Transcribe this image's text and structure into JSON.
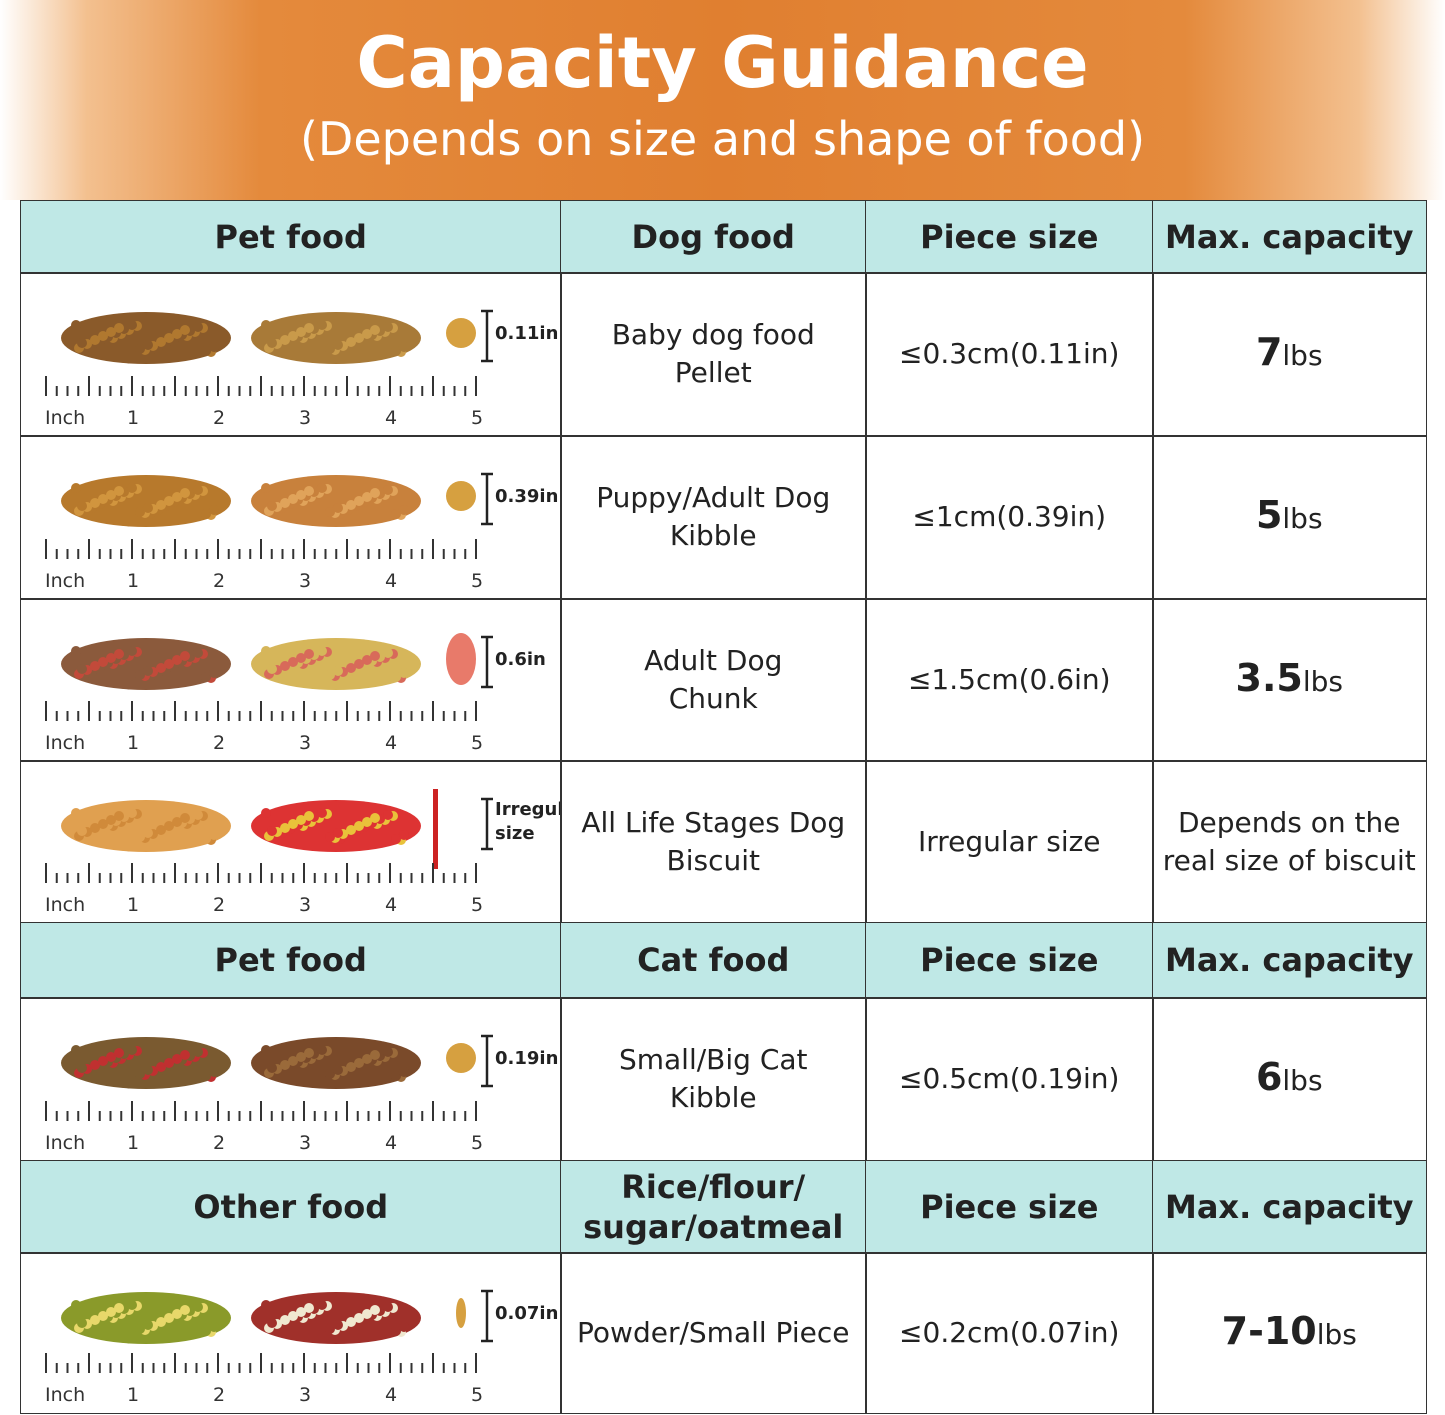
{
  "header": {
    "title": "Capacity Guidance",
    "subtitle": "(Depends on size and shape of food)"
  },
  "ruler": [
    "Inch",
    "1",
    "2",
    "3",
    "4",
    "5"
  ],
  "sections": [
    {
      "columns": [
        [
          "Pet food"
        ],
        [
          "Dog food"
        ],
        [
          "Piece size"
        ],
        [
          "Max. capacity"
        ]
      ],
      "rows": [
        {
          "size_mark": [
            "0.11in"
          ],
          "food": [
            "Baby dog food",
            "Pellet"
          ],
          "piece": "≤0.3cm(0.11in)",
          "capacity": [
            "7"
          ],
          "unit": "lbs"
        },
        {
          "size_mark": [
            "0.39in"
          ],
          "food": [
            "Puppy/Adult Dog",
            "Kibble"
          ],
          "piece": "≤1cm(0.39in)",
          "capacity": [
            "5"
          ],
          "unit": "lbs"
        },
        {
          "size_mark": [
            "0.6in"
          ],
          "food": [
            "Adult Dog",
            "Chunk"
          ],
          "piece": "≤1.5cm(0.6in)",
          "capacity": [
            "3.5"
          ],
          "unit": "lbs"
        },
        {
          "size_mark": [
            "Irregular",
            "size"
          ],
          "food": [
            "All Life Stages Dog",
            "Biscuit"
          ],
          "piece": "Irregular size",
          "capacity": [
            "Depends on the",
            "real size of biscuit"
          ]
        }
      ]
    },
    {
      "columns": [
        [
          "Pet food"
        ],
        [
          "Cat food"
        ],
        [
          "Piece size"
        ],
        [
          "Max. capacity"
        ]
      ],
      "rows": [
        {
          "size_mark": [
            "0.19in"
          ],
          "food": [
            "Small/Big Cat",
            "Kibble"
          ],
          "piece": "≤0.5cm(0.19in)",
          "capacity": [
            "6"
          ],
          "unit": "lbs"
        }
      ]
    },
    {
      "columns": [
        [
          "Other food"
        ],
        [
          "Rice/flour/",
          "sugar/oatmeal"
        ],
        [
          "Piece size"
        ],
        [
          "Max. capacity"
        ]
      ],
      "rows": [
        {
          "size_mark": [
            "0.07in"
          ],
          "food": [
            "Powder/Small Piece"
          ],
          "piece": "≤0.2cm(0.07in)",
          "capacity": [
            "7-10"
          ],
          "unit": "lbs"
        }
      ]
    }
  ]
}
